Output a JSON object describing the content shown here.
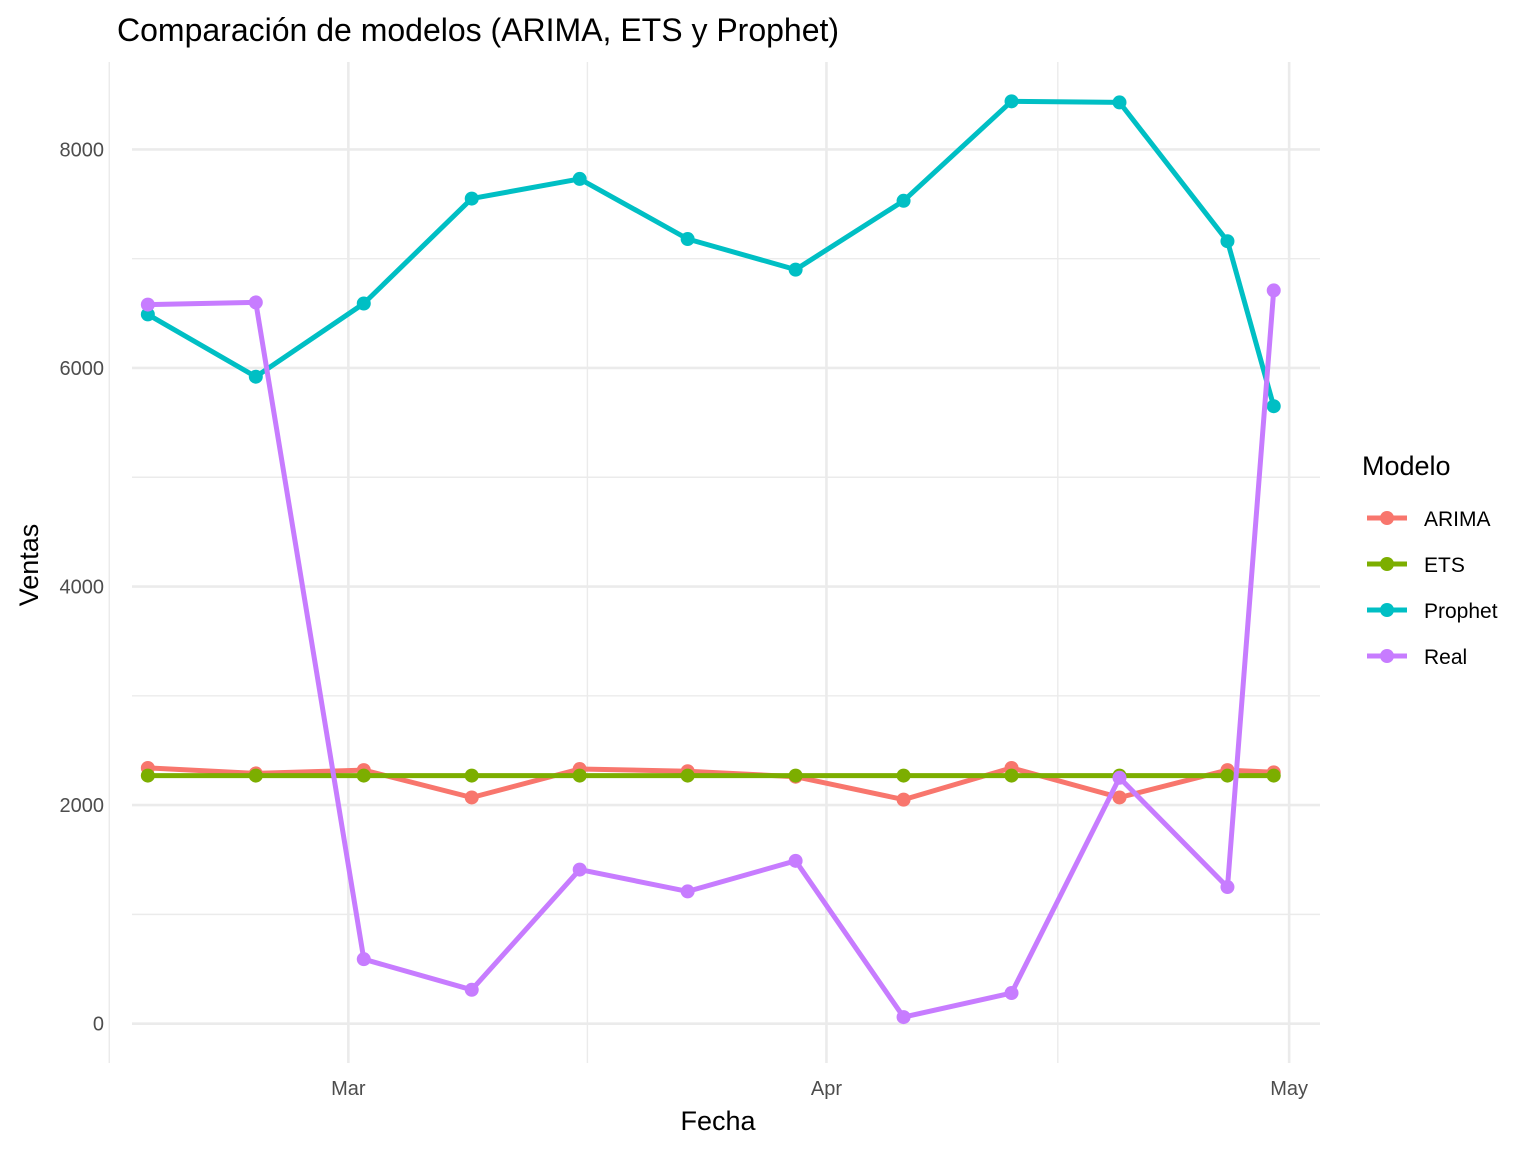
{
  "chart_data": {
    "type": "line",
    "title": "Comparación de modelos (ARIMA, ETS y Prophet)",
    "xlabel": "Fecha",
    "ylabel": "Ventas",
    "x_type": "date",
    "xlim": [
      "2025-02-14",
      "2025-05-03"
    ],
    "ylim": [
      -360,
      8800
    ],
    "y_ticks": [
      0,
      2000,
      4000,
      6000,
      8000
    ],
    "y_tick_labels": [
      "0",
      "2000",
      "4000",
      "6000",
      "8000"
    ],
    "x_ticks": [
      "2025-03-01",
      "2025-04-01",
      "2025-05-01"
    ],
    "x_tick_labels": [
      "Mar",
      "Apr",
      "May"
    ],
    "grid": true,
    "legend": {
      "title": "Modelo",
      "position": "right"
    },
    "x": [
      "2025-02-16",
      "2025-02-23",
      "2025-03-02",
      "2025-03-09",
      "2025-03-16",
      "2025-03-23",
      "2025-03-30",
      "2025-04-06",
      "2025-04-13",
      "2025-04-20",
      "2025-04-27",
      "2025-04-30"
    ],
    "series": [
      {
        "name": "ARIMA",
        "color": "#F8766D",
        "values": [
          2340,
          2290,
          2320,
          2070,
          2330,
          2310,
          2260,
          2050,
          2340,
          2070,
          2320,
          2300
        ]
      },
      {
        "name": "ETS",
        "color": "#7CAE00",
        "values": [
          2270,
          2270,
          2270,
          2270,
          2270,
          2270,
          2270,
          2270,
          2270,
          2270,
          2270,
          2270
        ]
      },
      {
        "name": "Prophet",
        "color": "#00BFC4",
        "values": [
          6490,
          5920,
          6590,
          7550,
          7730,
          7180,
          6900,
          7530,
          8440,
          8430,
          7160,
          5650
        ]
      },
      {
        "name": "Real",
        "color": "#C77CFF",
        "values": [
          6580,
          6600,
          590,
          310,
          1410,
          1210,
          1490,
          60,
          280,
          2250,
          1250,
          6710
        ]
      }
    ]
  }
}
